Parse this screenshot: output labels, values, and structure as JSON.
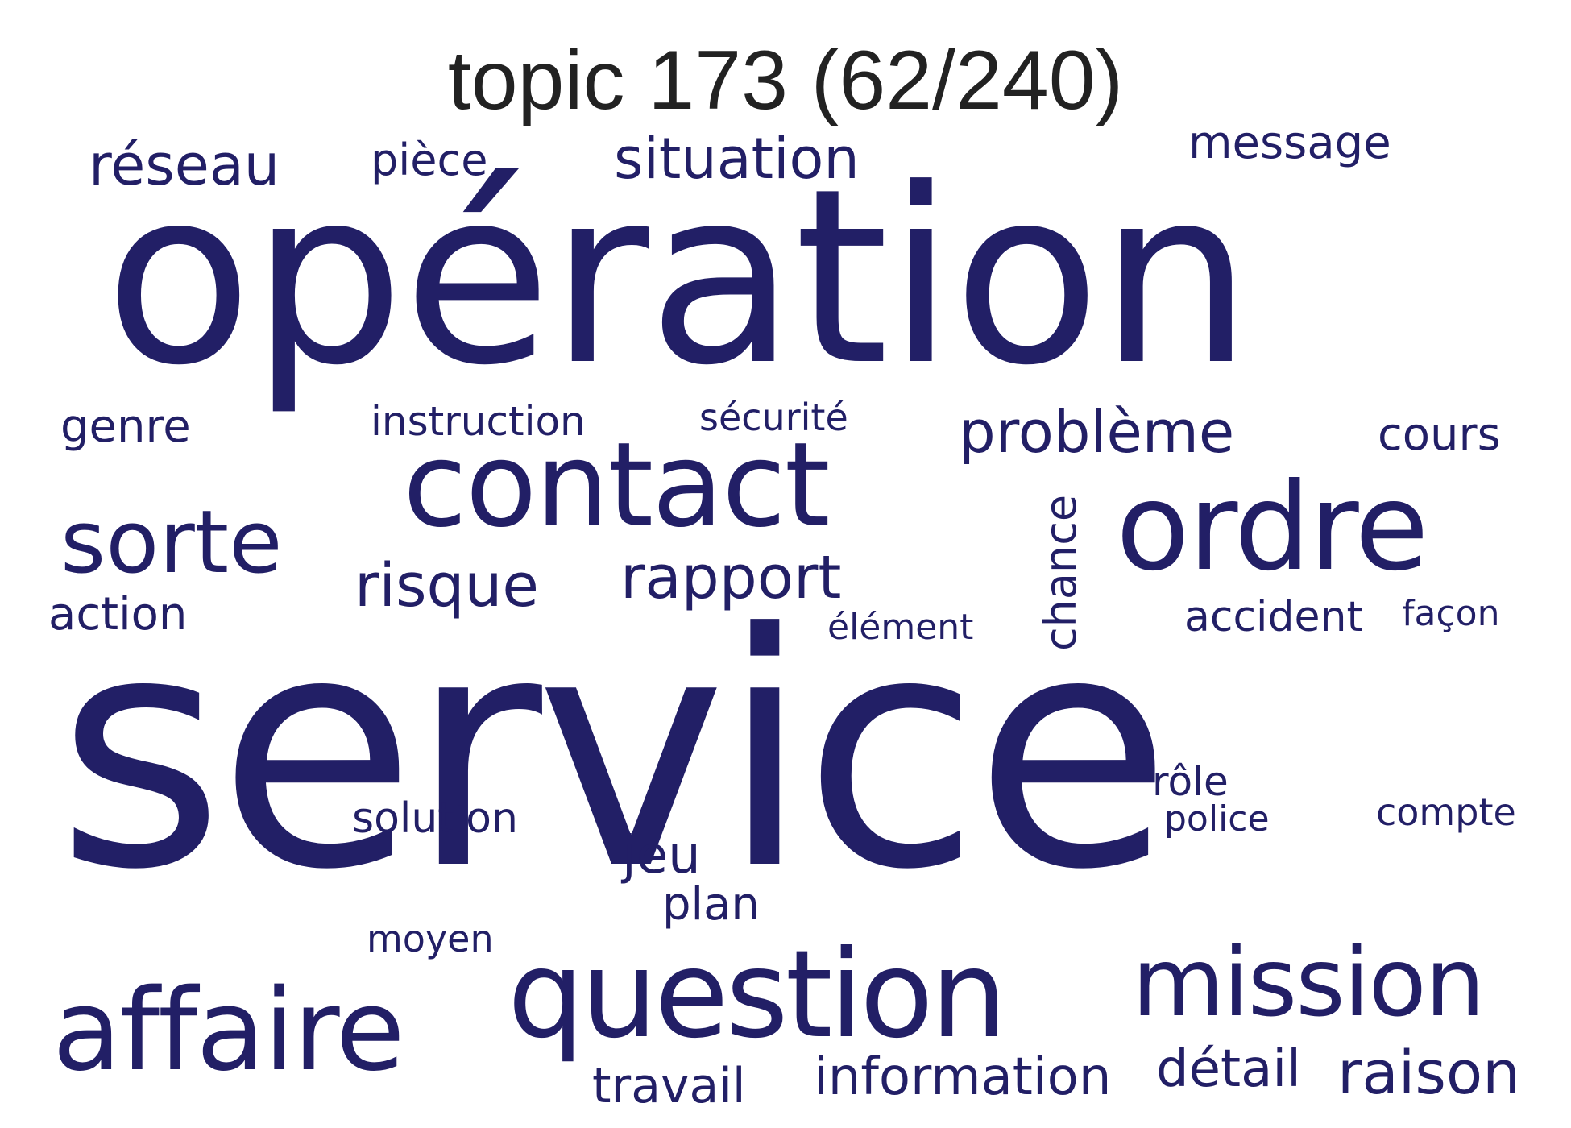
{
  "title": "topic 173 (62/240)",
  "color": "#221f66",
  "words": [
    "opération",
    "service",
    "contact",
    "ordre",
    "question",
    "affaire",
    "mission",
    "sorte",
    "problème",
    "rapport",
    "risque",
    "situation",
    "réseau",
    "message",
    "raison",
    "information",
    "détail",
    "travail",
    "pièce",
    "genre",
    "instruction",
    "sécurité",
    "cours",
    "chance",
    "action",
    "accident",
    "façon",
    "élément",
    "solution",
    "jeu",
    "plan",
    "rôle",
    "police",
    "compte",
    "moyen"
  ]
}
